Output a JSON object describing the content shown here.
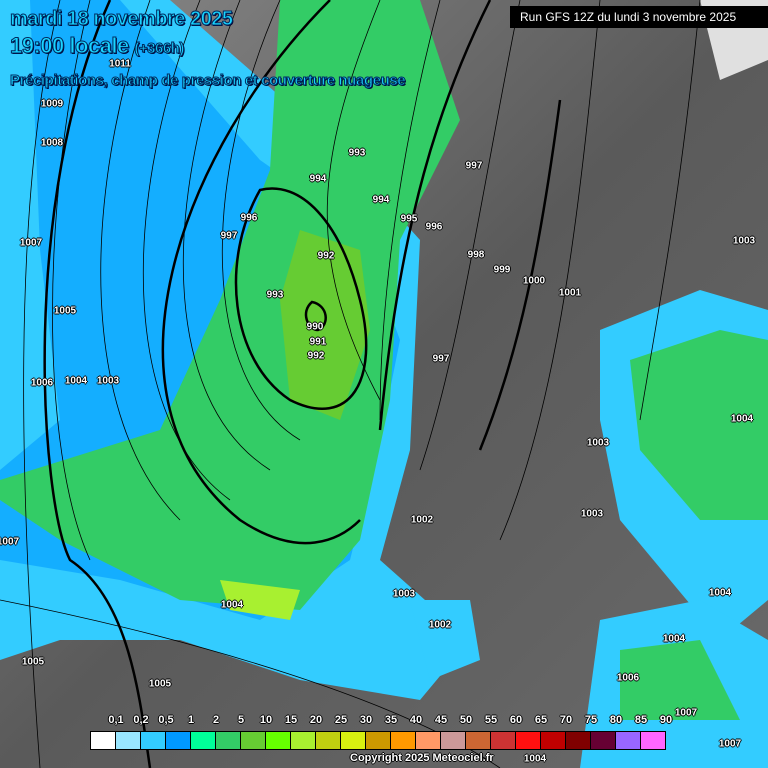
{
  "header": {
    "date": "mardi 18 novembre 2025",
    "time": "19:00 locale",
    "lead": "(+366h)",
    "subtitle": "Précipitations, champ de pression et couverture nuageuse",
    "run": "Run GFS 12Z du lundi 3 novembre 2025"
  },
  "isobar_labels": [
    "1011",
    "1009",
    "1008",
    "1007",
    "1005",
    "1006",
    "1004",
    "1003",
    "993",
    "994",
    "996",
    "997",
    "992",
    "993",
    "990",
    "991",
    "992",
    "994",
    "995",
    "996",
    "997",
    "998",
    "999",
    "1000",
    "1001",
    "997",
    "1003",
    "1004",
    "1003",
    "1003",
    "1002",
    "1003",
    "1002",
    "1004",
    "1007",
    "1005",
    "1004",
    "1005",
    "1004",
    "1006",
    "1007",
    "1004",
    "1007"
  ],
  "legend": {
    "labels": [
      "0,1",
      "0,2",
      "0,5",
      "1",
      "2",
      "5",
      "10",
      "15",
      "20",
      "25",
      "30",
      "35",
      "40",
      "45",
      "50",
      "55",
      "60",
      "65",
      "70",
      "75",
      "80",
      "85",
      "90"
    ],
    "colors": [
      "#ffffff",
      "#99e6ff",
      "#33ccff",
      "#0099ff",
      "#00ff99",
      "#33cc66",
      "#66cc33",
      "#66ff00",
      "#a8f030",
      "#c0d010",
      "#d8f010",
      "#cc9900",
      "#ff9900",
      "#ff9966",
      "#cc9999",
      "#cc6633",
      "#cc3333",
      "#ff1010",
      "#c00000",
      "#800000",
      "#660033",
      "#9966ff",
      "#ff66ff"
    ]
  },
  "copyright": "Copyright 2025 Meteociel.fr"
}
